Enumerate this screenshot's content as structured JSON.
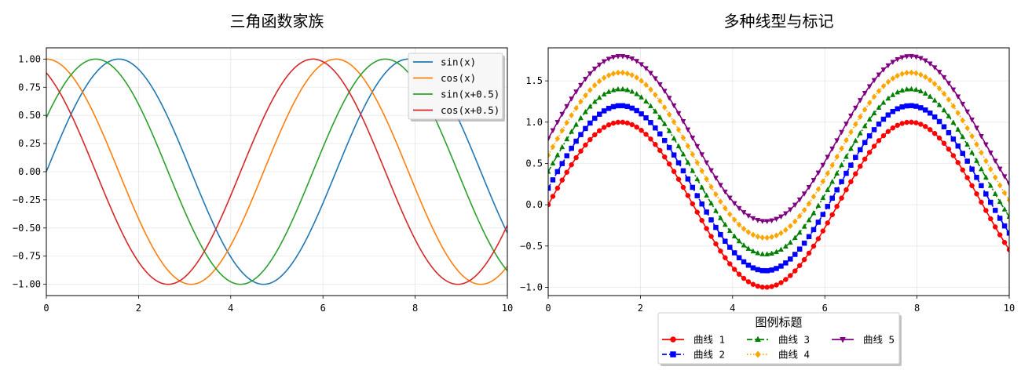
{
  "chart_data": [
    {
      "type": "line",
      "title": "三角函数家族",
      "xlim": [
        0,
        10
      ],
      "ylim": [
        -1.1,
        1.1
      ],
      "xticks": [
        0,
        2,
        4,
        6,
        8,
        10
      ],
      "xtick_labels": [
        "0",
        "2",
        "4",
        "6",
        "8",
        "10"
      ],
      "yticks": [
        -1.0,
        -0.75,
        -0.5,
        -0.25,
        0.0,
        0.25,
        0.5,
        0.75,
        1.0
      ],
      "ytick_labels": [
        "−1.00",
        "−0.75",
        "−0.50",
        "−0.25",
        "0.00",
        "0.25",
        "0.50",
        "0.75",
        "1.00"
      ],
      "grid": true,
      "legend_position": "top-right",
      "series": [
        {
          "name": "sin(x)",
          "func": "sin",
          "phase": 0,
          "color": "#1f77b4"
        },
        {
          "name": "cos(x)",
          "func": "cos",
          "phase": 0,
          "color": "#ff7f0e"
        },
        {
          "name": "sin(x+0.5)",
          "func": "sin",
          "phase": 0.5,
          "color": "#2ca02c"
        },
        {
          "name": "cos(x+0.5)",
          "func": "cos",
          "phase": 0.5,
          "color": "#d62728"
        }
      ]
    },
    {
      "type": "line",
      "title": "多种线型与标记",
      "xlim": [
        0,
        10
      ],
      "ylim": [
        -1.1,
        1.9
      ],
      "xticks": [
        0,
        2,
        4,
        6,
        8,
        10
      ],
      "xtick_labels": [
        "0",
        "2",
        "4",
        "6",
        "8",
        "10"
      ],
      "yticks": [
        -1.0,
        -0.5,
        0.0,
        0.5,
        1.0,
        1.5
      ],
      "ytick_labels": [
        "−1.0",
        "−0.5",
        "0.0",
        "0.5",
        "1.0",
        "1.5"
      ],
      "grid": true,
      "legend_position": "below",
      "legend_title": "图例标题",
      "series": [
        {
          "name": "曲线 1",
          "func": "sin",
          "offset": 0.0,
          "color": "#ff0000",
          "marker": "circle",
          "linestyle": "solid"
        },
        {
          "name": "曲线 2",
          "func": "sin",
          "offset": 0.2,
          "color": "#0000ff",
          "marker": "square",
          "linestyle": "dashed"
        },
        {
          "name": "曲线 3",
          "func": "sin",
          "offset": 0.4,
          "color": "#008000",
          "marker": "triangle-up",
          "linestyle": "dashdot"
        },
        {
          "name": "曲线 4",
          "func": "sin",
          "offset": 0.6,
          "color": "#ffa500",
          "marker": "diamond",
          "linestyle": "dotted"
        },
        {
          "name": "曲线 5",
          "func": "sin",
          "offset": 0.8,
          "color": "#800080",
          "marker": "triangle-down",
          "linestyle": "solid"
        }
      ]
    }
  ]
}
